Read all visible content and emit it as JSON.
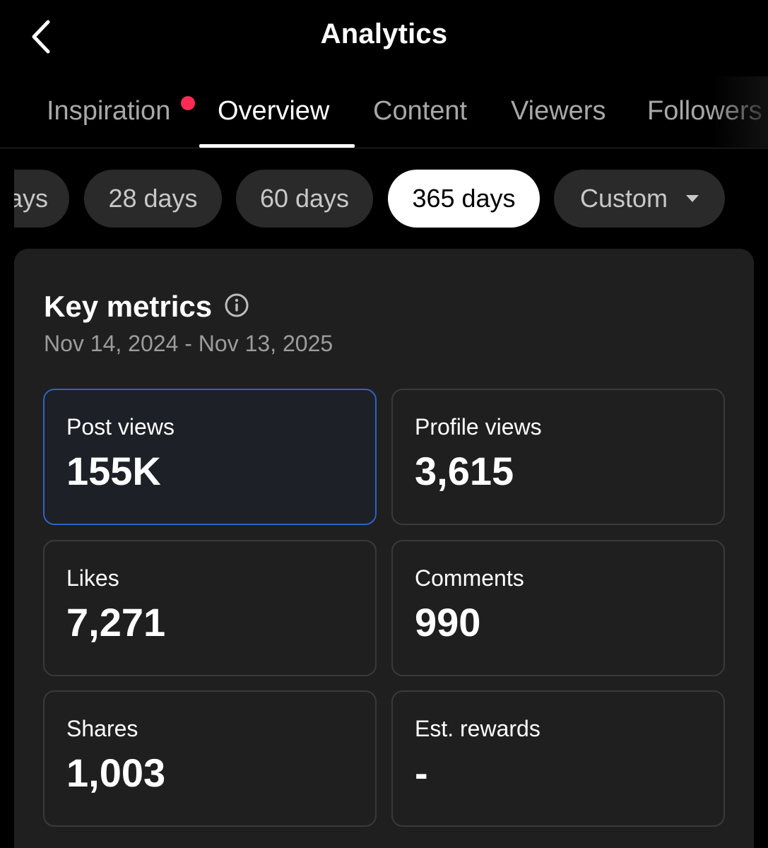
{
  "header": {
    "title": "Analytics"
  },
  "tabs": [
    {
      "label": "Inspiration",
      "active": false,
      "has_notification": true
    },
    {
      "label": "Overview",
      "active": true
    },
    {
      "label": "Content",
      "active": false
    },
    {
      "label": "Viewers",
      "active": false
    },
    {
      "label": "Followers",
      "active": false
    }
  ],
  "ranges": [
    {
      "label": "ays",
      "active": false
    },
    {
      "label": "28 days",
      "active": false
    },
    {
      "label": "60 days",
      "active": false
    },
    {
      "label": "365 days",
      "active": true
    },
    {
      "label": "Custom",
      "active": false,
      "dropdown": true
    }
  ],
  "key_metrics": {
    "title": "Key metrics",
    "date_range": "Nov 14, 2024 - Nov 13, 2025",
    "metrics": [
      {
        "label": "Post views",
        "value": "155K",
        "selected": true
      },
      {
        "label": "Profile views",
        "value": "3,615"
      },
      {
        "label": "Likes",
        "value": "7,271"
      },
      {
        "label": "Comments",
        "value": "990"
      },
      {
        "label": "Shares",
        "value": "1,003"
      },
      {
        "label": "Est. rewards",
        "value": "-"
      }
    ]
  },
  "colors": {
    "background": "#000000",
    "card": "#1f1f1f",
    "accent_border": "#2e62c8",
    "notification": "#fe2c55"
  }
}
